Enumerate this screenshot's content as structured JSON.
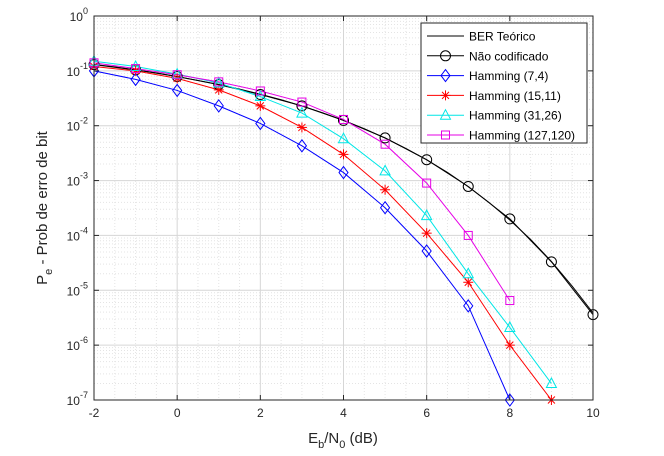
{
  "chart_data": {
    "type": "line",
    "xscale": "linear",
    "yscale": "log",
    "xlim": [
      -2,
      10
    ],
    "ylim": [
      1e-07,
      1
    ],
    "x_ticks": [
      -2,
      0,
      2,
      4,
      6,
      8,
      10
    ],
    "x_tick_labels": [
      "-2",
      "0",
      "2",
      "4",
      "6",
      "8",
      "10"
    ],
    "y_tick_bases": [
      "10",
      "10",
      "10",
      "10",
      "10",
      "10",
      "10",
      "10"
    ],
    "y_tick_exps": [
      "-7",
      "-6",
      "-5",
      "-4",
      "-3",
      "-2",
      "-1",
      "0"
    ],
    "xlabel": {
      "main": "E",
      "sub1": "b",
      "mid": "/N",
      "sub2": "0",
      "tail": " (dB)"
    },
    "ylabel": {
      "main": "P",
      "sub": "e",
      "tail": " - Prob de erro de bit"
    },
    "grid": true,
    "legend_position": "top-right",
    "series": [
      {
        "name": "BER Teórico",
        "color": "#000000",
        "marker": "none",
        "x": [
          -2,
          -1.5,
          -1,
          -0.5,
          0,
          0.5,
          1,
          1.5,
          2,
          2.5,
          3,
          3.5,
          4,
          4.5,
          5,
          5.5,
          6,
          6.5,
          7,
          7.5,
          8,
          8.5,
          9,
          9.5,
          10
        ],
        "y": [
          0.1306,
          0.1183,
          0.104,
          0.092,
          0.0786,
          0.0669,
          0.0563,
          0.0465,
          0.0375,
          0.0297,
          0.0229,
          0.0172,
          0.0125,
          0.00881,
          0.00595,
          0.00386,
          0.00239,
          0.00141,
          0.000773,
          0.000398,
          0.000191,
          8.44e-05,
          3.36e-05,
          1.19e-05,
          3.87e-06
        ]
      },
      {
        "name": "Não codificado",
        "color": "#000000",
        "marker": "circle",
        "x": [
          -2,
          -1,
          0,
          1,
          2,
          3,
          4,
          5,
          6,
          7,
          8,
          9,
          10
        ],
        "y": [
          0.13,
          0.104,
          0.079,
          0.056,
          0.037,
          0.023,
          0.0125,
          0.006,
          0.0024,
          0.00078,
          0.0002,
          3.3e-05,
          3.6e-06
        ]
      },
      {
        "name": "Hamming (7,4)",
        "color": "#0000ff",
        "marker": "diamond",
        "x": [
          -2,
          -1,
          0,
          1,
          2,
          3,
          4,
          5,
          6,
          7,
          8
        ],
        "y": [
          0.1,
          0.07,
          0.044,
          0.023,
          0.011,
          0.0043,
          0.0014,
          0.00032,
          5.2e-05,
          5.2e-06,
          1e-07
        ]
      },
      {
        "name": "Hamming (15,11)",
        "color": "#ff0000",
        "marker": "asterisk",
        "x": [
          -2,
          -1,
          0,
          1,
          2,
          3,
          4,
          5,
          6,
          7,
          8,
          9
        ],
        "y": [
          0.12,
          0.1,
          0.073,
          0.045,
          0.023,
          0.0093,
          0.003,
          0.00068,
          0.00011,
          1.4e-05,
          1e-06,
          1e-07
        ]
      },
      {
        "name": "Hamming (31,26)",
        "color": "#00e6e6",
        "marker": "triangle",
        "x": [
          -2,
          -1,
          0,
          1,
          2,
          3,
          4,
          5,
          6,
          7,
          8,
          9
        ],
        "y": [
          0.15,
          0.12,
          0.087,
          0.06,
          0.034,
          0.017,
          0.0058,
          0.0015,
          0.00023,
          2e-05,
          2.1e-06,
          2e-07
        ]
      },
      {
        "name": "Hamming (127,120)",
        "color": "#e600e6",
        "marker": "square",
        "x": [
          -2,
          -1,
          0,
          1,
          2,
          3,
          4,
          5,
          6,
          7,
          8
        ],
        "y": [
          0.14,
          0.11,
          0.085,
          0.063,
          0.043,
          0.027,
          0.013,
          0.0046,
          0.0009,
          0.0001,
          6.5e-06
        ]
      }
    ]
  }
}
